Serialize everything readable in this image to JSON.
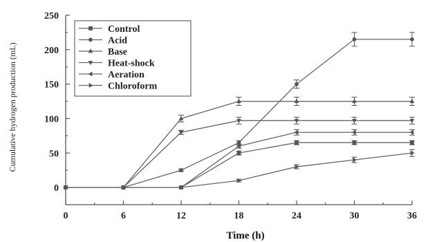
{
  "chart_data": {
    "type": "line",
    "title": "",
    "xlabel": "Time (h)",
    "ylabel": "Cumulative hydrogen production (mL)",
    "x": [
      0,
      6,
      12,
      18,
      24,
      30,
      36
    ],
    "xlim": [
      0,
      36
    ],
    "ylim": [
      -25,
      250
    ],
    "yticks": [
      0,
      50,
      100,
      150,
      200,
      250
    ],
    "grid": false,
    "legend_position": "top-left",
    "series": [
      {
        "name": "Control",
        "marker": "square",
        "values": [
          0,
          0,
          0,
          50,
          65,
          65,
          65
        ],
        "errors": [
          0,
          0,
          0,
          3,
          3,
          3,
          3
        ]
      },
      {
        "name": "Acid",
        "marker": "circle",
        "values": [
          0,
          0,
          25,
          65,
          150,
          215,
          215
        ],
        "errors": [
          0,
          0,
          2,
          3,
          6,
          10,
          10
        ]
      },
      {
        "name": "Base",
        "marker": "triangle-up",
        "values": [
          0,
          0,
          100,
          125,
          125,
          125,
          125
        ],
        "errors": [
          0,
          0,
          5,
          6,
          6,
          6,
          6
        ]
      },
      {
        "name": "Heat-shock",
        "marker": "triangle-down",
        "values": [
          0,
          0,
          80,
          97,
          97,
          97,
          97
        ],
        "errors": [
          0,
          0,
          3,
          5,
          5,
          5,
          5
        ]
      },
      {
        "name": "Aeration",
        "marker": "triangle-left",
        "values": [
          0,
          0,
          0,
          60,
          80,
          80,
          80
        ],
        "errors": [
          0,
          0,
          0,
          3,
          4,
          4,
          4
        ]
      },
      {
        "name": "Chloroform",
        "marker": "triangle-right",
        "values": [
          0,
          0,
          0,
          10,
          30,
          40,
          50
        ],
        "errors": [
          0,
          0,
          0,
          2,
          3,
          4,
          5
        ]
      }
    ]
  }
}
